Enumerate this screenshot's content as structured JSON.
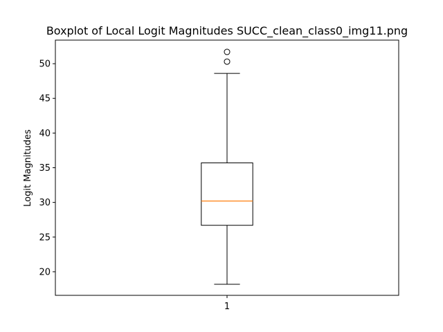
{
  "chart_data": {
    "type": "boxplot",
    "title": "Boxplot of Local Logit Magnitudes SUCC_clean_class0_img11.png",
    "xlabel": "",
    "ylabel": "Logit Magnitudes",
    "ylim": [
      16.6,
      53.4
    ],
    "yticks": [
      20,
      25,
      30,
      35,
      40,
      45,
      50
    ],
    "categories": [
      "1"
    ],
    "boxes": [
      {
        "label": "1",
        "whisker_low": 18.2,
        "q1": 26.7,
        "median": 30.2,
        "q3": 35.7,
        "whisker_high": 48.6,
        "outliers": [
          50.3,
          51.7
        ]
      }
    ],
    "grid": false,
    "colors": {
      "box": "#000000",
      "median": "#ff7f0e",
      "background": "#ffffff"
    }
  }
}
